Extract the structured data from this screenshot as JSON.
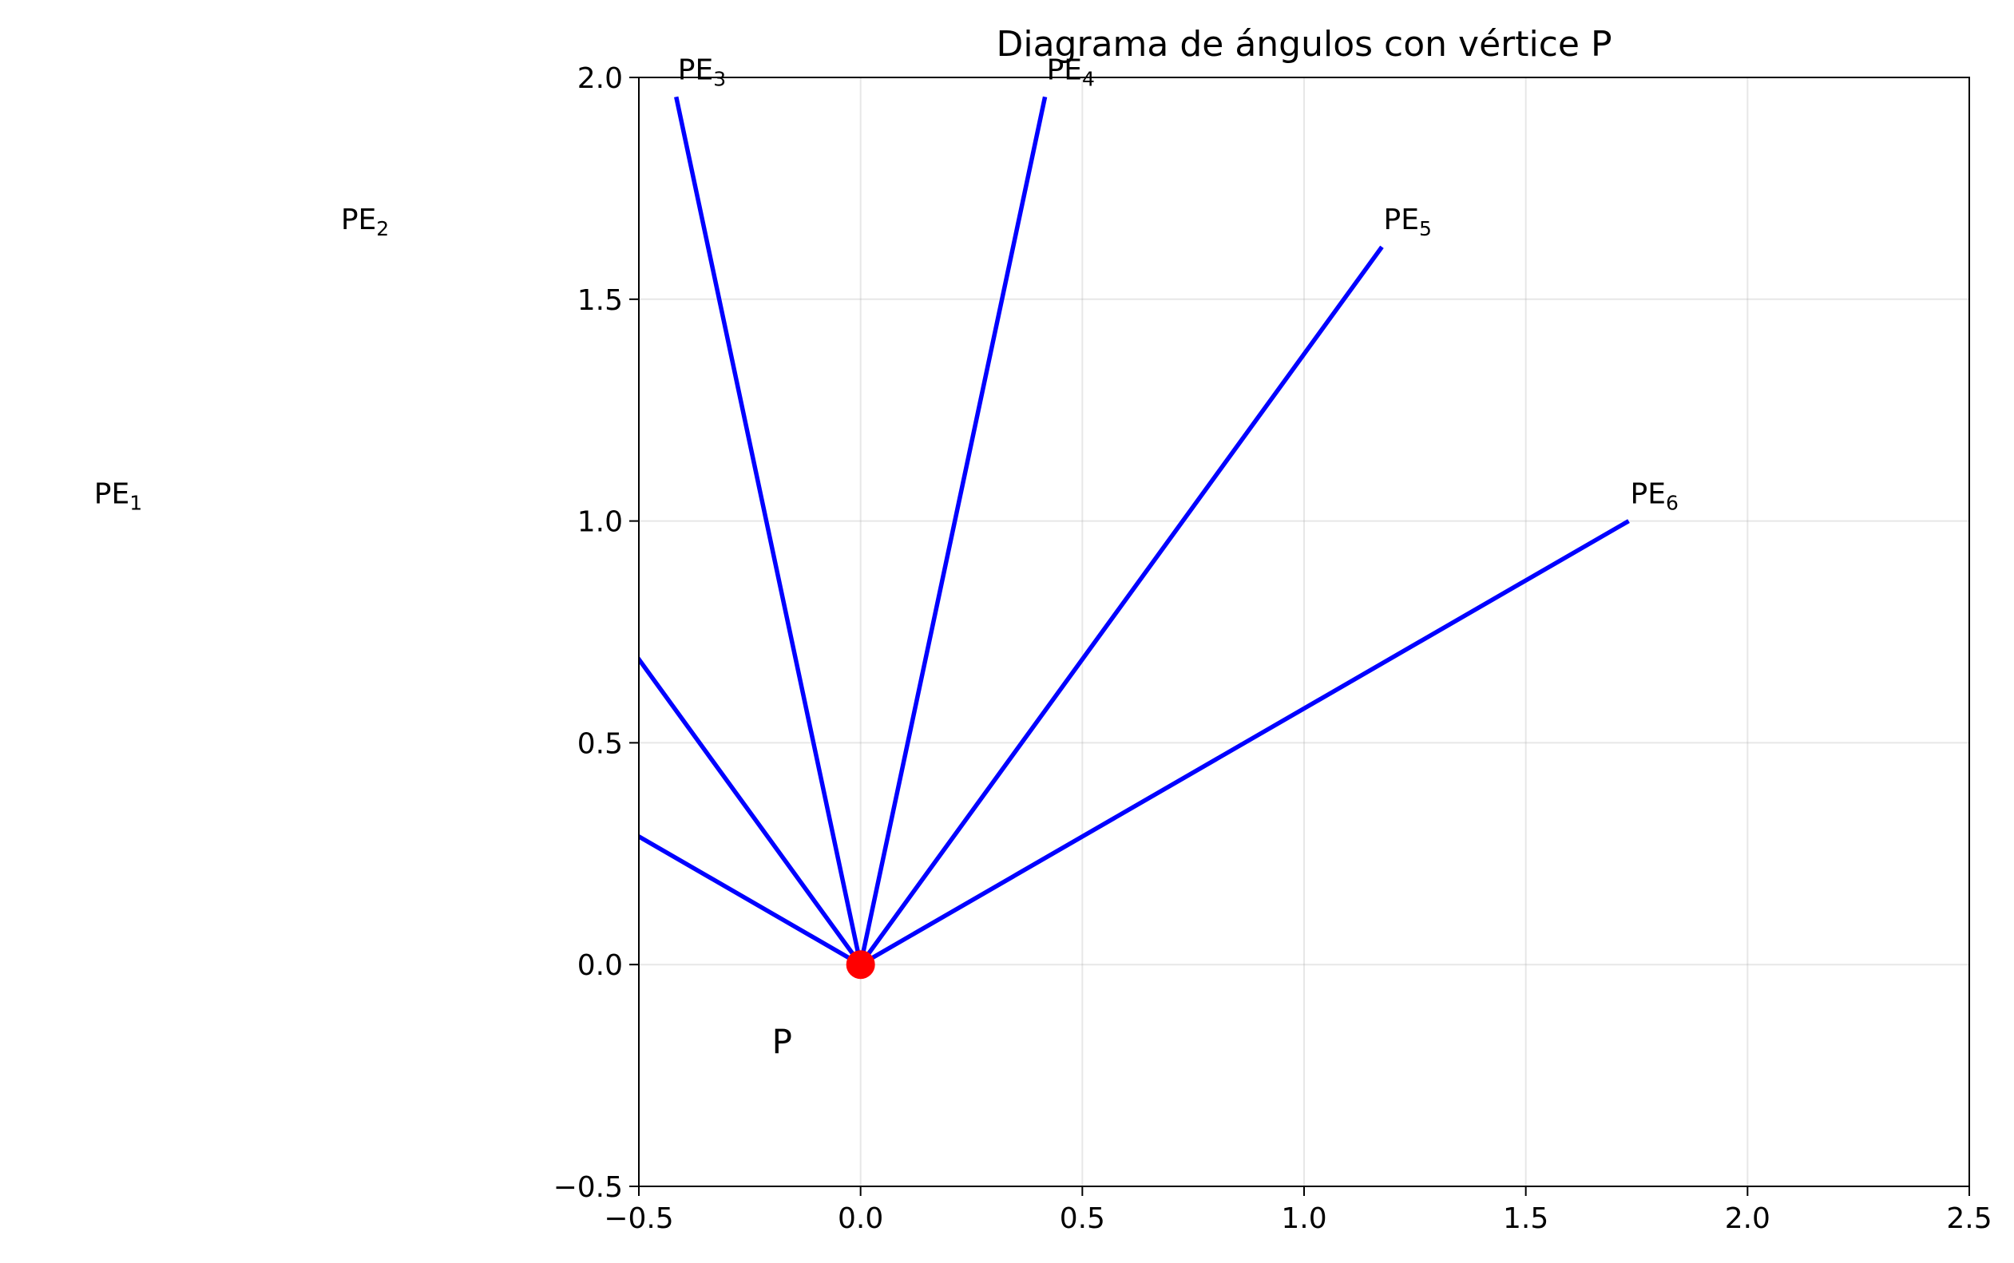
{
  "chart_data": {
    "type": "line",
    "title": "Diagrama de ángulos con vértice P",
    "xlabel": "",
    "ylabel": "",
    "xlim": [
      -0.5,
      2.5
    ],
    "ylim": [
      -0.5,
      2.0
    ],
    "xticks": [
      -0.5,
      0.0,
      0.5,
      1.0,
      1.5,
      2.0,
      2.5
    ],
    "yticks": [
      -0.5,
      0.0,
      0.5,
      1.0,
      1.5,
      2.0
    ],
    "xtick_labels": [
      "−0.5",
      "0.0",
      "0.5",
      "1.0",
      "1.5",
      "2.0",
      "2.5"
    ],
    "ytick_labels": [
      "−0.5",
      "0.0",
      "0.5",
      "1.0",
      "1.5",
      "2.0"
    ],
    "grid": true,
    "vertex": {
      "name": "P",
      "x": 0.0,
      "y": 0.0,
      "color": "#ff0000"
    },
    "ray_color": "#0000ff",
    "rays": [
      {
        "name": "PE",
        "sub": "1",
        "angle_deg": 150,
        "length": 2.0
      },
      {
        "name": "PE",
        "sub": "2",
        "angle_deg": 126,
        "length": 2.0
      },
      {
        "name": "PE",
        "sub": "3",
        "angle_deg": 102,
        "length": 2.0
      },
      {
        "name": "PE",
        "sub": "4",
        "angle_deg": 78,
        "length": 2.0
      },
      {
        "name": "PE",
        "sub": "5",
        "angle_deg": 54,
        "length": 2.0
      },
      {
        "name": "PE",
        "sub": "6",
        "angle_deg": 30,
        "length": 2.0
      }
    ]
  }
}
